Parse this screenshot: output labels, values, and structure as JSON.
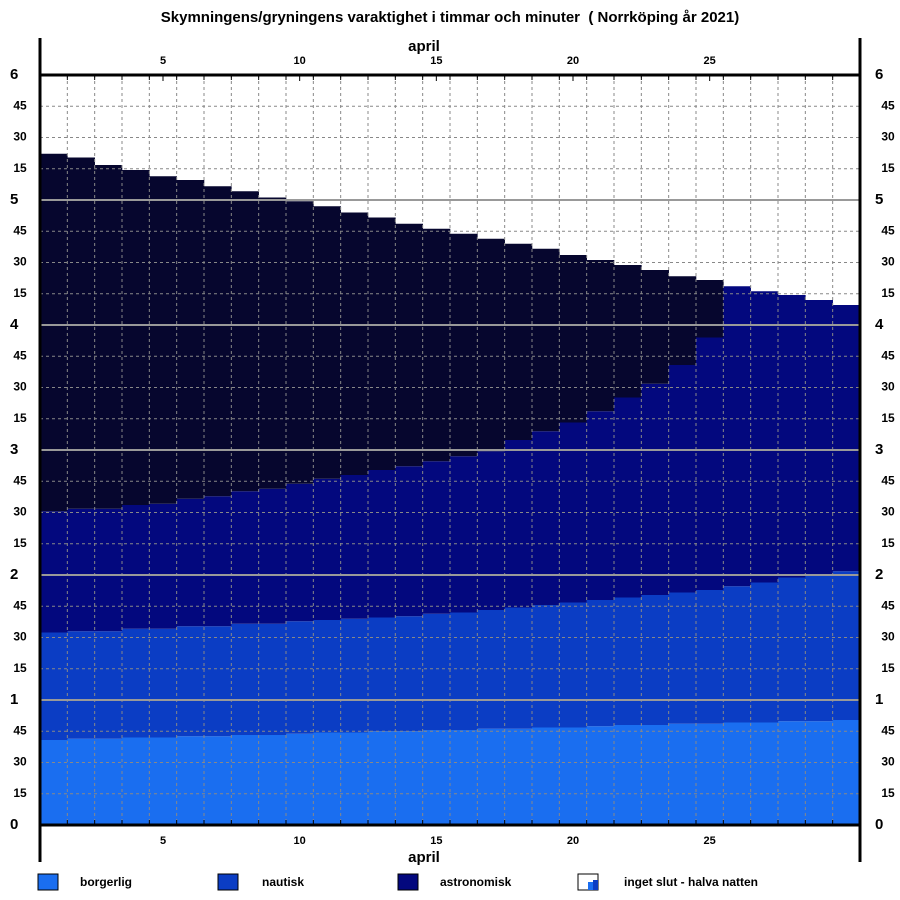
{
  "chart_data": {
    "type": "stacked-step",
    "title": "Skymningens/gryningens varaktighet i timmar och minuter  ( Norrköping år 2021)",
    "xlabel": "april",
    "x": [
      1,
      2,
      3,
      4,
      5,
      6,
      7,
      8,
      9,
      10,
      11,
      12,
      13,
      14,
      15,
      16,
      17,
      18,
      19,
      20,
      21,
      22,
      23,
      24,
      25,
      26,
      27,
      28,
      29,
      30
    ],
    "xlim": [
      0.5,
      30.5
    ],
    "xticks": [
      5,
      10,
      15,
      20,
      25
    ],
    "ylim": [
      0,
      6
    ],
    "yticks": [
      0,
      {
        "value": 0.25,
        "label": "15"
      },
      {
        "value": 0.5,
        "label": "30"
      },
      {
        "value": 0.75,
        "label": "45"
      },
      1,
      {
        "value": 1.25,
        "label": "15"
      },
      {
        "value": 1.5,
        "label": "30"
      },
      {
        "value": 1.75,
        "label": "45"
      },
      2,
      {
        "value": 2.25,
        "label": "15"
      },
      {
        "value": 2.5,
        "label": "30"
      },
      {
        "value": 2.75,
        "label": "45"
      },
      3,
      {
        "value": 3.25,
        "label": "15"
      },
      {
        "value": 3.5,
        "label": "30"
      },
      {
        "value": 3.75,
        "label": "45"
      },
      4,
      {
        "value": 4.25,
        "label": "15"
      },
      {
        "value": 4.5,
        "label": "30"
      },
      {
        "value": 4.75,
        "label": "45"
      },
      5,
      {
        "value": 5.25,
        "label": "15"
      },
      {
        "value": 5.5,
        "label": "30"
      },
      {
        "value": 5.75,
        "label": "45"
      },
      6
    ],
    "grid": true,
    "series": [
      {
        "name": "borgerlig",
        "color": "#1a6ef0",
        "values": [
          0.68,
          0.69,
          0.69,
          0.7,
          0.7,
          0.71,
          0.71,
          0.72,
          0.72,
          0.73,
          0.74,
          0.74,
          0.75,
          0.75,
          0.76,
          0.76,
          0.77,
          0.77,
          0.78,
          0.78,
          0.79,
          0.8,
          0.8,
          0.81,
          0.81,
          0.82,
          0.82,
          0.83,
          0.83,
          0.84
        ]
      },
      {
        "name": "nautisk",
        "color": "#0b3dc4",
        "values": [
          0.86,
          0.86,
          0.86,
          0.87,
          0.87,
          0.88,
          0.88,
          0.89,
          0.89,
          0.9,
          0.9,
          0.91,
          0.91,
          0.92,
          0.93,
          0.94,
          0.95,
          0.97,
          0.98,
          1.0,
          1.01,
          1.02,
          1.04,
          1.05,
          1.07,
          1.09,
          1.12,
          1.15,
          1.17,
          1.19
        ]
      },
      {
        "name": "astronomisk",
        "color": "#03087e",
        "values": [
          0.97,
          0.98,
          0.98,
          0.99,
          1.0,
          1.02,
          1.04,
          1.06,
          1.08,
          1.1,
          1.13,
          1.15,
          1.18,
          1.2,
          1.22,
          1.25,
          1.27,
          1.34,
          1.39,
          1.44,
          1.51,
          1.6,
          1.69,
          1.82,
          2.02,
          2.4,
          2.33,
          2.26,
          2.2,
          2.13
        ]
      },
      {
        "color": "#06062e",
        "values": [
          2.86,
          2.81,
          2.75,
          2.68,
          2.62,
          2.55,
          2.48,
          2.4,
          2.33,
          2.26,
          2.18,
          2.1,
          2.02,
          1.94,
          1.86,
          1.78,
          1.7,
          1.57,
          1.46,
          1.34,
          1.21,
          1.06,
          0.91,
          0.71,
          0.46,
          null,
          null,
          null,
          null,
          null
        ]
      }
    ],
    "legend_note": "inget slut - halva natten"
  }
}
